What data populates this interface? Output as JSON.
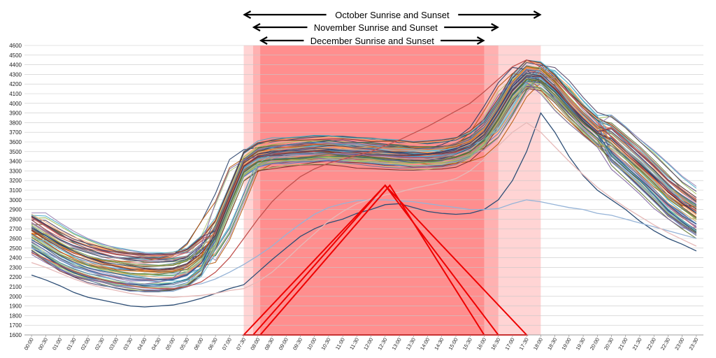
{
  "chart_data": {
    "type": "line",
    "title": "",
    "xlabel": "",
    "ylabel": "",
    "ylim": [
      1600,
      4600
    ],
    "ytick_step": 100,
    "grid": true,
    "legend": "none",
    "x_tick_labels": [
      "00:00",
      "00:30",
      "01:00",
      "01:30",
      "02:00",
      "02:30",
      "03:00",
      "03:30",
      "04:00",
      "04:30",
      "05:00",
      "05:30",
      "06:00",
      "06:30",
      "07:00",
      "07:30",
      "08:00",
      "08:30",
      "09:00",
      "09:30",
      "10:00",
      "10:30",
      "11:00",
      "11:30",
      "12:00",
      "12:30",
      "13:00",
      "13:30",
      "14:00",
      "14:30",
      "15:00",
      "15:30",
      "16:00",
      "16:30",
      "17:00",
      "17:30",
      "18:00",
      "18:30",
      "19:00",
      "19:30",
      "20:00",
      "20:30",
      "21:00",
      "21:30",
      "22:00",
      "22:30",
      "23:00",
      "23:30"
    ],
    "daylight_bands": [
      {
        "label": "October Sunrise and Sunset",
        "start": "07:30",
        "end": "18:00",
        "color": "#ffcccc"
      },
      {
        "label": "November Sunrise and Sunset",
        "start": "07:50",
        "end": "16:30",
        "color": "#ffaaaa"
      },
      {
        "label": "December Sunrise and Sunset",
        "start": "08:05",
        "end": "16:00",
        "color": "#ff8888"
      }
    ],
    "solar_triangles": [
      {
        "start": "07:30",
        "peak_time": "12:30",
        "peak": 3150,
        "end": "17:30",
        "color": "#ee0000"
      },
      {
        "start": "07:50",
        "peak_time": "12:30",
        "peak": 3150,
        "end": "16:30",
        "color": "#ee0000"
      },
      {
        "start": "08:05",
        "peak_time": "12:40",
        "peak": 3150,
        "end": "16:00",
        "color": "#ee0000"
      }
    ],
    "typical_profile": [
      2650,
      2560,
      2470,
      2400,
      2350,
      2310,
      2280,
      2260,
      2250,
      2250,
      2260,
      2300,
      2420,
      2650,
      3000,
      3350,
      3450,
      3480,
      3490,
      3500,
      3510,
      3520,
      3510,
      3500,
      3490,
      3480,
      3470,
      3460,
      3460,
      3470,
      3500,
      3560,
      3680,
      3900,
      4150,
      4300,
      4280,
      4150,
      3980,
      3830,
      3700,
      3580,
      3450,
      3320,
      3180,
      3030,
      2920,
      2820
    ],
    "series_colors": [
      "#4f81bd",
      "#c0504d",
      "#9bbb59",
      "#8064a2",
      "#4bacc6",
      "#f79646",
      "#2c4d75",
      "#772c2a",
      "#5f7530",
      "#4d3b62",
      "#276a7c",
      "#b65708",
      "#729aca",
      "#cd7371",
      "#afc97a",
      "#9983b5",
      "#6fbdd1",
      "#f9ab6b",
      "#1f3864",
      "#a6a6a6"
    ],
    "outlier_series": [
      {
        "color": "#2c4d75",
        "values": [
          2220,
          2170,
          2110,
          2040,
          1990,
          1960,
          1930,
          1900,
          1890,
          1900,
          1910,
          1940,
          1980,
          2030,
          2080,
          2120,
          2250,
          2380,
          2500,
          2620,
          2700,
          2760,
          2800,
          2860,
          2900,
          2950,
          2960,
          2920,
          2880,
          2860,
          2850,
          2860,
          2900,
          3000,
          3200,
          3500,
          3900,
          3700,
          3450,
          3250,
          3100,
          3000,
          2900,
          2780,
          2680,
          2600,
          2540,
          2470
        ]
      },
      {
        "color": "#95b3d7",
        "values": [
          2500,
          2450,
          2380,
          2320,
          2260,
          2210,
          2170,
          2140,
          2120,
          2110,
          2100,
          2110,
          2130,
          2180,
          2250,
          2330,
          2420,
          2520,
          2640,
          2750,
          2850,
          2920,
          2960,
          2990,
          3000,
          3000,
          2990,
          2980,
          2960,
          2940,
          2920,
          2900,
          2900,
          2910,
          2960,
          3000,
          2980,
          2950,
          2920,
          2900,
          2860,
          2840,
          2800,
          2760,
          2720,
          2680,
          2640,
          2600
        ]
      },
      {
        "color": "#e6b9b8",
        "values": [
          2350,
          2300,
          2240,
          2180,
          2130,
          2090,
          2060,
          2030,
          2010,
          2000,
          1990,
          2000,
          2010,
          2030,
          2060,
          2080,
          2150,
          2250,
          2380,
          2520,
          2650,
          2780,
          2880,
          2960,
          3010,
          3050,
          3080,
          3120,
          3150,
          3180,
          3220,
          3300,
          3420,
          3560,
          3700,
          3800,
          3700,
          3550,
          3400,
          3260,
          3130,
          3020,
          2920,
          2830,
          2740,
          2660,
          2590,
          2520
        ]
      },
      {
        "color": "#c0504d",
        "values": [
          2450,
          2390,
          2320,
          2260,
          2210,
          2170,
          2140,
          2110,
          2090,
          2080,
          2080,
          2100,
          2150,
          2250,
          2400,
          2600,
          2800,
          2980,
          3120,
          3240,
          3320,
          3380,
          3420,
          3460,
          3500,
          3560,
          3620,
          3690,
          3760,
          3840,
          3920,
          4000,
          4120,
          4250,
          4380,
          4450,
          4380,
          4250,
          4100,
          3950,
          3800,
          3650,
          3500,
          3360,
          3220,
          3090,
          2980,
          2880
        ]
      }
    ]
  }
}
